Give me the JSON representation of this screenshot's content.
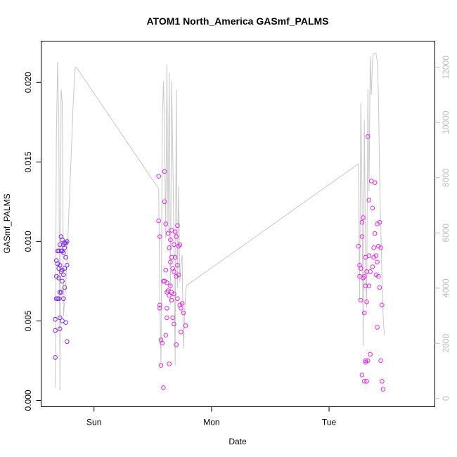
{
  "chart_data": {
    "type": "scatter",
    "title": "ATOM1 North_America GASmf_PALMS",
    "xlabel": "Date",
    "ylabel": "GASmf_PALMS",
    "x_ticks": [
      "Sun",
      "Mon",
      "Tue"
    ],
    "x_tick_positions_days": [
      0,
      1,
      2
    ],
    "xlim_days": [
      -0.45,
      2.9
    ],
    "ylim": [
      -0.0004,
      0.0226
    ],
    "y_ticks": [
      0.0,
      0.005,
      0.01,
      0.015,
      0.02
    ],
    "y_tick_labels": [
      "0.000",
      "0.005",
      "0.010",
      "0.015",
      "0.020"
    ],
    "y2_ticks": [
      0,
      2000,
      4000,
      6000,
      8000,
      10000,
      12000
    ],
    "y2_tick_labels": [
      "0",
      "2000",
      "4000",
      "6000",
      "8000",
      "10000",
      "12000"
    ],
    "y2lim": [
      -300,
      12950
    ],
    "grid": false,
    "legend": "none",
    "point_colors": {
      "early": "#7e28f0",
      "late": "#ee22ee"
    },
    "line_color": "#c8c8c8",
    "series": [
      {
        "style": "points",
        "x": [
          -0.33,
          -0.33,
          -0.33,
          -0.32,
          -0.32,
          -0.32,
          -0.31,
          -0.31,
          -0.31,
          -0.3,
          -0.3,
          -0.3,
          -0.3,
          -0.29,
          -0.29,
          -0.29,
          -0.29,
          -0.29,
          -0.28,
          -0.28,
          -0.28,
          -0.28,
          -0.27,
          -0.27,
          -0.27,
          -0.27,
          -0.27,
          -0.26,
          -0.26,
          -0.26,
          -0.26,
          -0.25,
          -0.25,
          -0.25,
          -0.25,
          -0.24,
          -0.24,
          -0.24,
          -0.23,
          -0.23,
          -0.23
        ],
        "y": [
          0.0027,
          0.0044,
          0.0051,
          0.0064,
          0.0078,
          0.0088,
          0.0094,
          0.0086,
          0.0064,
          0.0094,
          0.0083,
          0.0077,
          0.0064,
          0.0098,
          0.0085,
          0.0068,
          0.0052,
          0.0045,
          0.0103,
          0.0094,
          0.0081,
          0.0068,
          0.0101,
          0.0094,
          0.0082,
          0.0075,
          0.005,
          0.0098,
          0.0093,
          0.0079,
          0.0064,
          0.0099,
          0.0096,
          0.0083,
          0.0071,
          0.0099,
          0.009,
          0.0049,
          0.01,
          0.0085,
          0.0037
        ]
      },
      {
        "style": "points",
        "x": [
          0.55,
          0.55,
          0.56,
          0.56,
          0.56,
          0.57,
          0.57,
          0.58,
          0.59,
          0.59,
          0.6,
          0.6,
          0.6,
          0.61,
          0.61,
          0.61,
          0.62,
          0.62,
          0.62,
          0.62,
          0.63,
          0.63,
          0.64,
          0.64,
          0.64,
          0.65,
          0.65,
          0.65,
          0.66,
          0.66,
          0.66,
          0.66,
          0.67,
          0.67,
          0.68,
          0.68,
          0.68,
          0.68,
          0.69,
          0.69,
          0.7,
          0.7,
          0.7,
          0.71,
          0.71,
          0.71,
          0.72,
          0.72,
          0.73,
          0.73,
          0.74,
          0.74,
          0.75,
          0.76,
          0.78
        ],
        "y": [
          0.0141,
          0.0113,
          0.0103,
          0.006,
          0.0058,
          0.0038,
          0.0022,
          0.0036,
          0.0075,
          0.0008,
          0.0144,
          0.0125,
          0.0075,
          0.0111,
          0.0082,
          0.0041,
          0.0074,
          0.0068,
          0.0058,
          0.0052,
          0.0105,
          0.0069,
          0.0096,
          0.0066,
          0.0023,
          0.0101,
          0.0087,
          0.0072,
          0.0107,
          0.009,
          0.0068,
          0.0063,
          0.0083,
          0.0052,
          0.0098,
          0.0081,
          0.0067,
          0.0048,
          0.0106,
          0.009,
          0.0103,
          0.0078,
          0.0035,
          0.011,
          0.0085,
          0.0064,
          0.0097,
          0.0079,
          0.0098,
          0.006,
          0.0058,
          0.0043,
          0.0061,
          0.0055,
          0.0047
        ]
      },
      {
        "style": "points",
        "x": [
          2.25,
          2.26,
          2.26,
          2.27,
          2.27,
          2.28,
          2.28,
          2.28,
          2.29,
          2.29,
          2.3,
          2.3,
          2.3,
          2.31,
          2.31,
          2.31,
          2.31,
          2.32,
          2.32,
          2.32,
          2.33,
          2.33,
          2.34,
          2.34,
          2.34,
          2.35,
          2.35,
          2.36,
          2.37,
          2.37,
          2.38,
          2.38,
          2.39,
          2.39,
          2.4,
          2.4,
          2.41,
          2.41,
          2.41,
          2.42,
          2.42,
          2.43,
          2.43,
          2.44,
          2.44,
          2.45,
          2.45,
          2.46
        ],
        "y": [
          0.0097,
          0.0085,
          0.0078,
          0.0083,
          0.0063,
          0.0112,
          0.0103,
          0.0016,
          0.0115,
          0.0077,
          0.0078,
          0.0055,
          0.0012,
          0.009,
          0.0072,
          0.0024,
          0.0025,
          0.0081,
          0.0062,
          0.0012,
          0.0166,
          0.0025,
          0.0126,
          0.0091,
          0.0072,
          0.0081,
          0.0029,
          0.0138,
          0.0121,
          0.0084,
          0.0096,
          0.009,
          0.0137,
          0.0105,
          0.0091,
          0.0079,
          0.0111,
          0.0087,
          0.0046,
          0.0097,
          0.0078,
          0.0112,
          0.0071,
          0.0025,
          0.0096,
          0.006,
          0.0012,
          0.0007
        ]
      },
      {
        "style": "line",
        "axis": "right",
        "x": [
          -0.33,
          -0.32,
          -0.31,
          -0.3,
          -0.29,
          -0.28,
          -0.27,
          -0.26,
          -0.25,
          -0.24,
          -0.23,
          -0.22,
          -0.21,
          -0.2,
          -0.19,
          -0.18,
          -0.17,
          -0.16,
          -0.15,
          0.55,
          0.56,
          0.57,
          0.58,
          0.59,
          0.6,
          0.61,
          0.62,
          0.63,
          0.64,
          0.65,
          0.66,
          0.67,
          0.68,
          0.69,
          0.7,
          0.71,
          0.72,
          0.73,
          0.74,
          0.75,
          0.76,
          0.77,
          0.78,
          0.79,
          2.25,
          2.26,
          2.27,
          2.28,
          2.29,
          2.3,
          2.31,
          2.32,
          2.33,
          2.34,
          2.35,
          2.36,
          2.37,
          2.38,
          2.39,
          2.4,
          2.41,
          2.42,
          2.43,
          2.44,
          2.45,
          2.46,
          2.47
        ],
        "y": [
          400,
          9500,
          12200,
          10000,
          300,
          11200,
          10700,
          3000,
          3500,
          4200,
          5000,
          6000,
          7200,
          8200,
          9300,
          10400,
          11300,
          12000,
          12000,
          7600,
          3500,
          1200,
          9800,
          11500,
          10000,
          5800,
          12100,
          6000,
          11800,
          3400,
          11500,
          9000,
          5600,
          1200,
          11200,
          4000,
          7700,
          4200,
          4900,
          5200,
          1800,
          2900,
          3900,
          4100,
          8500,
          3600,
          10700,
          7500,
          1900,
          10100,
          5000,
          3300,
          11200,
          7500,
          12400,
          11000,
          12300,
          12500,
          12500,
          12500,
          12200,
          11000,
          8000,
          6200,
          4400,
          3000,
          2300
        ]
      }
    ]
  }
}
